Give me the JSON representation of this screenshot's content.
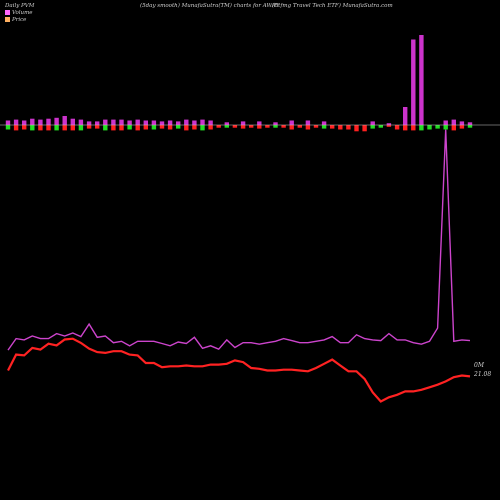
{
  "header": {
    "left": "Daily PVM",
    "center": "(5day smooth) MunafaSutra(TM) charts for AWAY",
    "right": "(Etfmg Travel Tech ETF) MunafaSutra.com"
  },
  "legend": [
    {
      "label": "Volume",
      "color": "#ff66ff"
    },
    {
      "label": "Price",
      "color": "#ffb060"
    }
  ],
  "chart_data": {
    "type": "line",
    "title": "(5day smooth) MunafaSutra(TM) charts for AWAY",
    "x": [
      1,
      2,
      3,
      4,
      5,
      6,
      7,
      8,
      9,
      10,
      11,
      12,
      13,
      14,
      15,
      16,
      17,
      18,
      19,
      20,
      21,
      22,
      23,
      24,
      25,
      26,
      27,
      28,
      29,
      30,
      31,
      32,
      33,
      34,
      35,
      36,
      37,
      38,
      39,
      40,
      41,
      42,
      43,
      44,
      45,
      46,
      47,
      48,
      49,
      50,
      51,
      52,
      53,
      54,
      55,
      56,
      57,
      58
    ],
    "end_labels": {
      "volume": "0M",
      "price": "21.08"
    },
    "colors": {
      "price": "#ff2222",
      "volume": "#cc44cc",
      "bar_up": "#cc33cc",
      "bar_neutral": "#ff33ff",
      "bar_down_red": "#ff2020",
      "bar_down_green": "#22dd22",
      "zero_line": "#cccccc"
    },
    "series": [
      {
        "key": "price",
        "values": [
          23.0,
          24.9,
          24.8,
          25.7,
          25.5,
          26.2,
          26.0,
          26.7,
          26.8,
          26.3,
          25.6,
          25.2,
          25.1,
          25.3,
          25.3,
          24.9,
          24.8,
          23.9,
          23.9,
          23.4,
          23.5,
          23.5,
          23.6,
          23.5,
          23.5,
          23.7,
          23.7,
          23.8,
          24.2,
          24.0,
          23.3,
          23.2,
          23.0,
          23.0,
          23.1,
          23.1,
          23.0,
          22.9,
          23.3,
          23.8,
          24.3,
          23.6,
          22.9,
          22.9,
          22.0,
          20.4,
          19.3,
          19.8,
          20.1,
          20.5,
          20.5,
          20.7,
          21.0,
          21.3,
          21.7,
          22.2,
          22.4,
          22.3
        ]
      },
      {
        "key": "volume",
        "values": [
          0.15,
          0.3,
          0.28,
          0.34,
          0.3,
          0.3,
          0.38,
          0.34,
          0.39,
          0.33,
          0.56,
          0.32,
          0.34,
          0.24,
          0.26,
          0.2,
          0.26,
          0.26,
          0.26,
          0.23,
          0.2,
          0.25,
          0.23,
          0.32,
          0.17,
          0.2,
          0.16,
          0.28,
          0.18,
          0.24,
          0.24,
          0.22,
          0.24,
          0.26,
          0.3,
          0.27,
          0.24,
          0.24,
          0.26,
          0.28,
          0.33,
          0.24,
          0.24,
          0.36,
          0.3,
          0.28,
          0.27,
          0.38,
          0.28,
          0.28,
          0.24,
          0.22,
          0.26,
          0.48,
          11.9,
          0.26,
          0.28,
          0.27
        ]
      },
      {
        "key": "pvm",
        "values": [
          5,
          6,
          5,
          7,
          6,
          7,
          8,
          10,
          7,
          6,
          4,
          4,
          6,
          6,
          6,
          5,
          6,
          5,
          5,
          4,
          5,
          4,
          6,
          5,
          6,
          5,
          -3,
          3,
          -3,
          4,
          -3,
          4,
          -3,
          3,
          -3,
          5,
          -3,
          5,
          -3,
          4,
          -4,
          -5,
          -5,
          -7,
          -7,
          4,
          -3,
          2,
          -5,
          20,
          95,
          100,
          -5,
          -4,
          5,
          6,
          4,
          3
        ],
        "sign_color": [
          "up",
          "up",
          "up",
          "up",
          "up",
          "up",
          "up",
          "up",
          "up",
          "up",
          "up",
          "up",
          "up",
          "up",
          "up",
          "up",
          "up",
          "up",
          "up",
          "up",
          "up",
          "up",
          "up",
          "up",
          "up",
          "up",
          "red",
          "up",
          "red",
          "up",
          "red",
          "up",
          "red",
          "up",
          "red",
          "up",
          "red",
          "up",
          "red",
          "up",
          "red",
          "red",
          "red",
          "red",
          "red",
          "up",
          "green",
          "up",
          "red",
          "up",
          "up",
          "up",
          "green",
          "green",
          "up",
          "up",
          "up",
          "up"
        ]
      }
    ]
  }
}
